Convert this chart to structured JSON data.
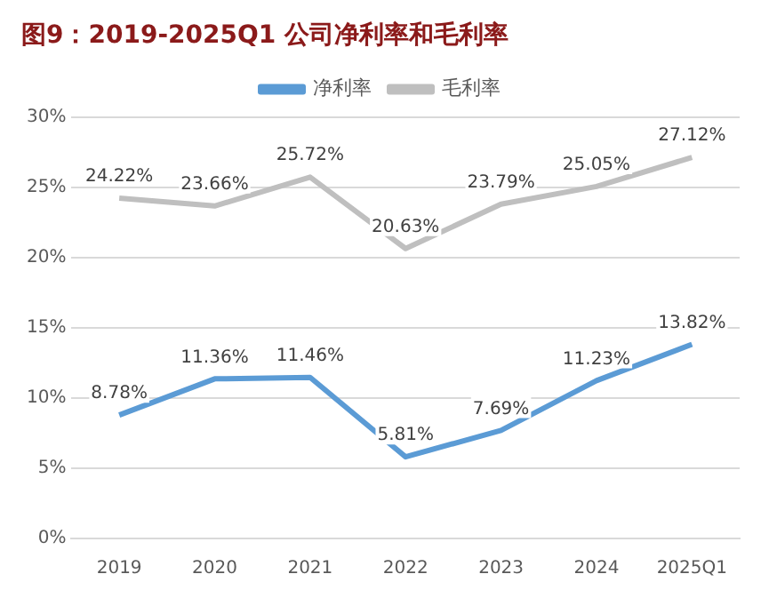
{
  "chart_data": {
    "type": "line",
    "title": "图9：2019-2025Q1 公司净利率和毛利率",
    "categories": [
      "2019",
      "2020",
      "2021",
      "2022",
      "2023",
      "2024",
      "2025Q1"
    ],
    "series": [
      {
        "name": "净利率",
        "color": "#5b9bd5",
        "values": [
          8.78,
          11.36,
          11.46,
          5.81,
          7.69,
          11.23,
          13.82
        ],
        "value_labels": [
          "8.78%",
          "11.36%",
          "11.46%",
          "5.81%",
          "7.69%",
          "11.23%",
          "13.82%"
        ]
      },
      {
        "name": "毛利率",
        "color": "#bfbfbf",
        "values": [
          24.22,
          23.66,
          25.72,
          20.63,
          23.79,
          25.05,
          27.12
        ],
        "value_labels": [
          "24.22%",
          "23.66%",
          "25.72%",
          "20.63%",
          "23.79%",
          "25.05%",
          "27.12%"
        ]
      }
    ],
    "ylim": [
      0,
      30
    ],
    "yticks": [
      {
        "value": 0,
        "label": "0%"
      },
      {
        "value": 5,
        "label": "5%"
      },
      {
        "value": 10,
        "label": "10%"
      },
      {
        "value": 15,
        "label": "15%"
      },
      {
        "value": 20,
        "label": "20%"
      },
      {
        "value": 25,
        "label": "25%"
      },
      {
        "value": 30,
        "label": "30%"
      }
    ],
    "grid": "y",
    "legend": "top",
    "marker": "none",
    "line_style": "solid"
  }
}
